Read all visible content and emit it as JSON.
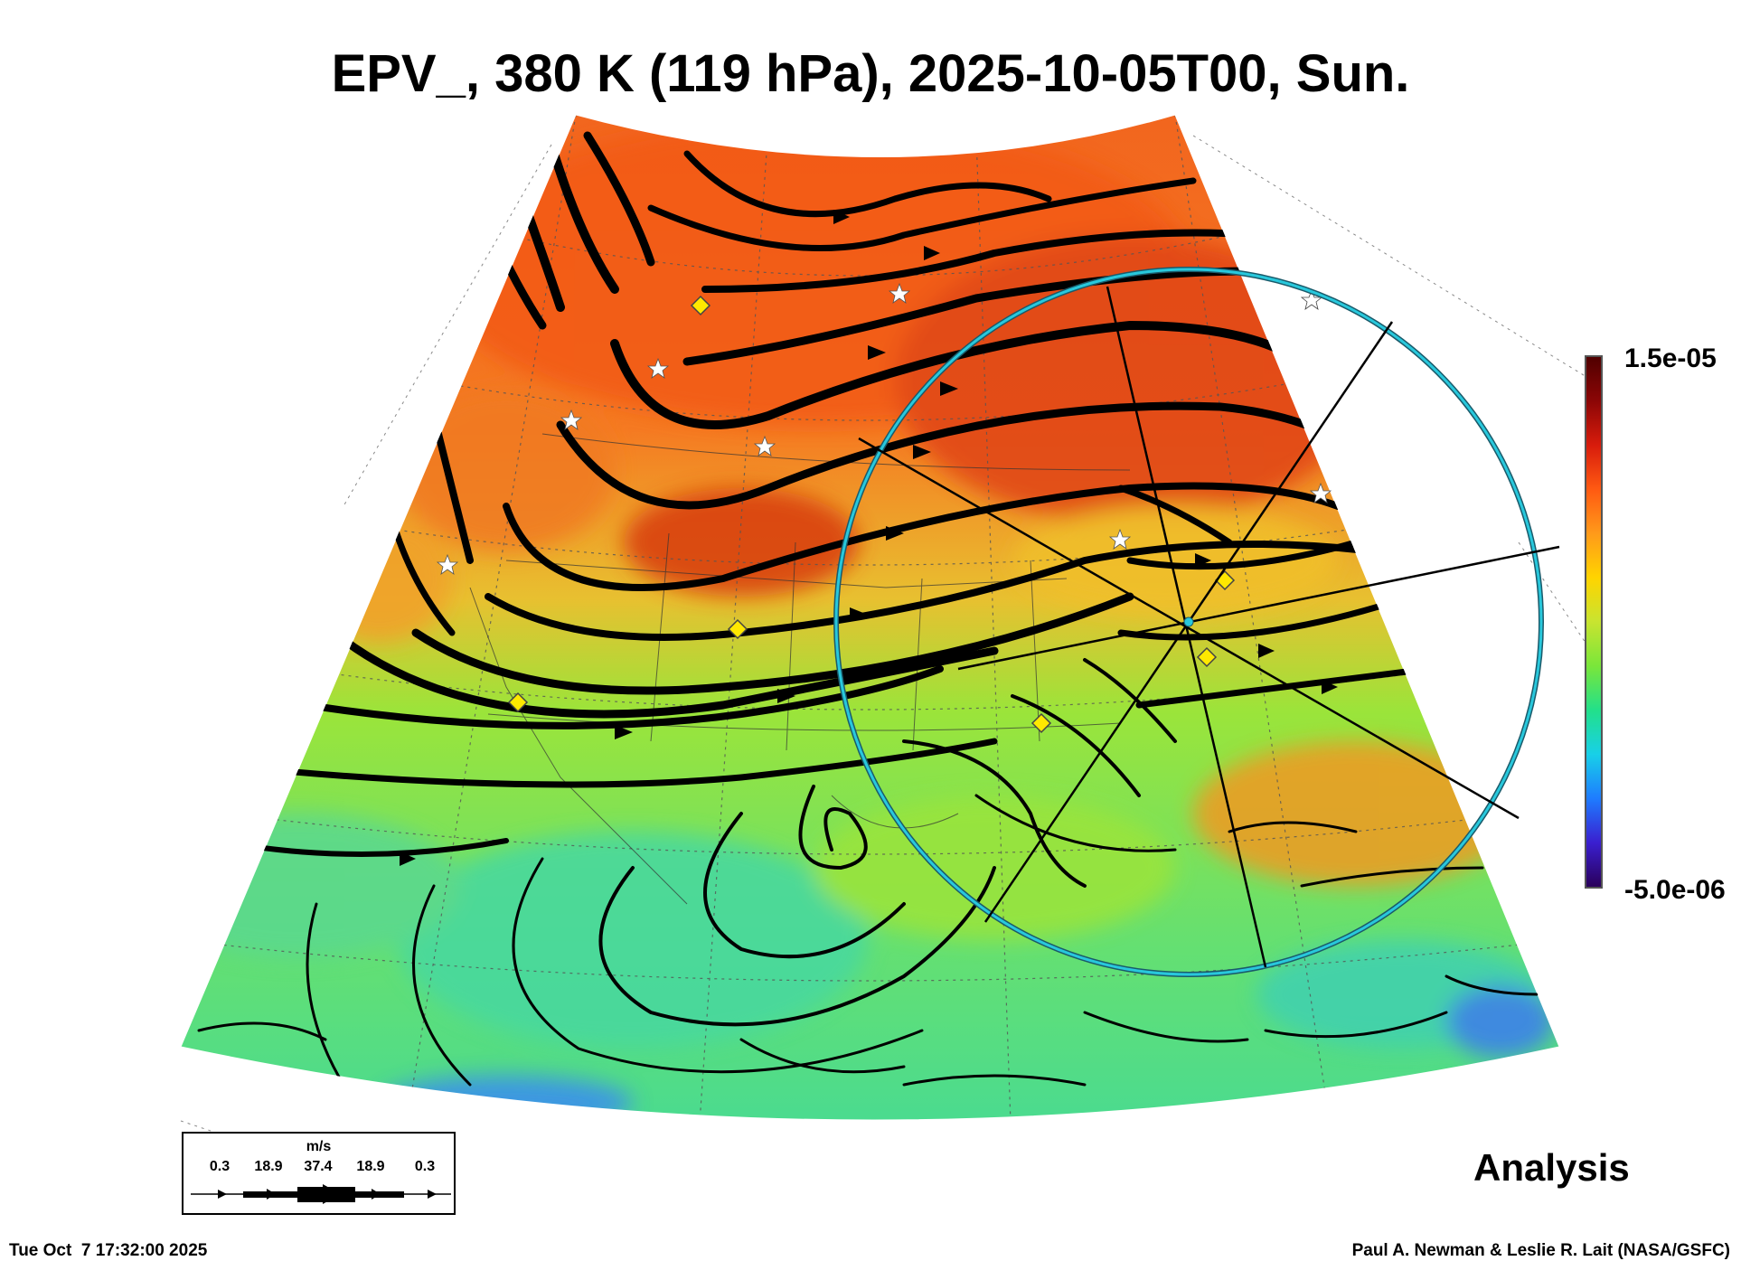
{
  "title": "EPV_, 380 K (119 hPa), 2025-10-05T00, Sun.",
  "colorbar": {
    "max_label": "1.5e-05",
    "min_label": "-5.0e-06",
    "colors": [
      "#2a005a",
      "#3a1fd0",
      "#1e7cff",
      "#18d0e8",
      "#22e08a",
      "#7ae63a",
      "#c8e430",
      "#ffd400",
      "#ff9a1a",
      "#ff5a12",
      "#d81c0c",
      "#8c0606",
      "#500000"
    ]
  },
  "legend": {
    "unit": "m/s",
    "speeds": [
      "0.3",
      "18.9",
      "37.4",
      "18.9",
      "0.3"
    ]
  },
  "product_label": "Analysis",
  "timestamp": "Tue Oct  7 17:32:00 2025",
  "credit": "Paul A. Newman & Leslie R. Lait (NASA/GSFC)",
  "map_colors": {
    "high_pv": "#f2641e",
    "mid_pv": "#9be43a",
    "low_pv": "#3cd8a0",
    "streamline": "#000000",
    "ring": "#28c8dc",
    "marker_diamond": "#ffe800"
  }
}
